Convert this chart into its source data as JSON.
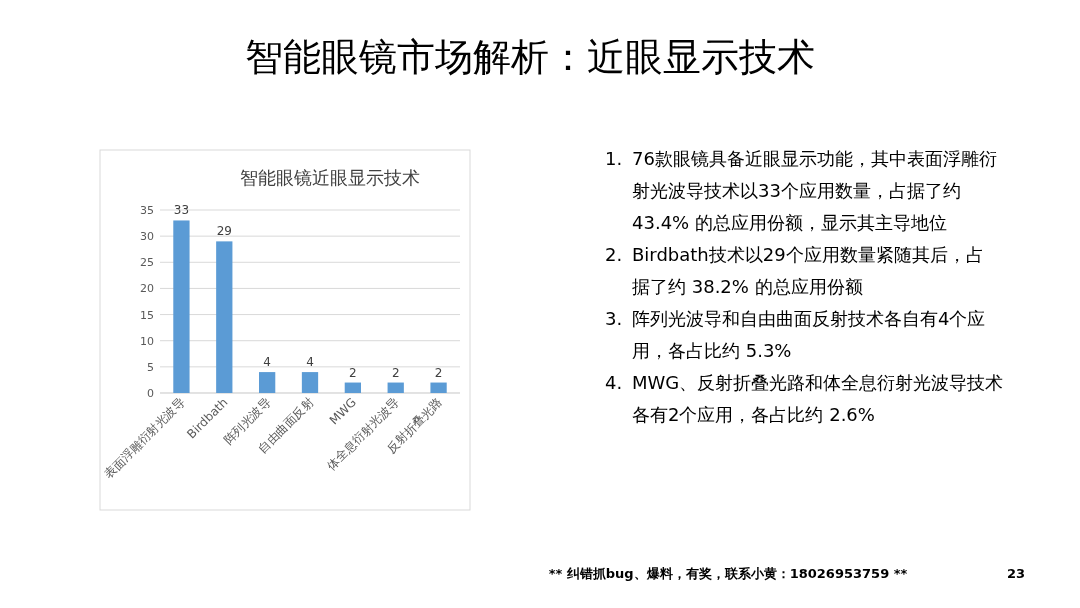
{
  "chart_data": {
    "type": "bar",
    "title": "智能眼镜近眼显示技术",
    "categories": [
      "表面浮雕衍射光波导",
      "Birdbath",
      "阵列光波导",
      "自由曲面反射",
      "MWG",
      "体全息衍射光波导",
      "反射折叠光路"
    ],
    "values": [
      33,
      29,
      4,
      4,
      2,
      2,
      2
    ],
    "color": "#5b9bd5",
    "ylim": [
      0,
      35
    ],
    "yticks": [
      0,
      5,
      10,
      15,
      20,
      25,
      30,
      35
    ],
    "grid": "y",
    "data_labels": true,
    "annotations": [
      "智能眼镜市场解析：近眼显示技术",
      "1. 76款眼镜具备近眼显示功能，其中表面浮雕衍射光波导技术以33个应用数量，占据了约 43.4% 的总应用份额，显示其主导地位",
      "2. Birdbath技术以29个应用数量紧随其后，占据了约 38.2% 的总应用份额",
      "3. 阵列光波导和自由曲面反射技术各自有4个应用，各占比约 5.3%",
      "4. MWG、反射折叠光路和体全息衍射光波导技术各有2个应用，各占比约 2.6%",
      "** 纠错抓bug、爆料，有奖，联系小黄：18026953759 **",
      "23"
    ]
  }
}
